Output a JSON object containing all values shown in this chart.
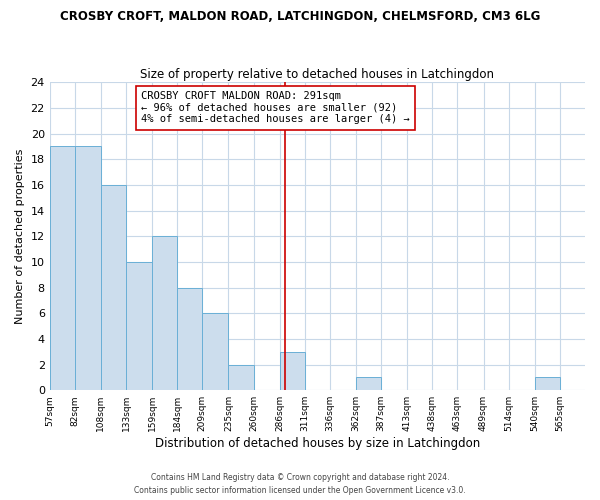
{
  "title_line1": "CROSBY CROFT, MALDON ROAD, LATCHINGDON, CHELMSFORD, CM3 6LG",
  "title_line2": "Size of property relative to detached houses in Latchingdon",
  "xlabel": "Distribution of detached houses by size in Latchingdon",
  "ylabel": "Number of detached properties",
  "bar_edges": [
    57,
    82,
    108,
    133,
    159,
    184,
    209,
    235,
    260,
    286,
    311,
    336,
    362,
    387,
    413,
    438,
    463,
    489,
    514,
    540,
    565,
    590
  ],
  "bar_heights": [
    19,
    19,
    16,
    10,
    12,
    8,
    6,
    2,
    0,
    3,
    0,
    0,
    1,
    0,
    0,
    0,
    0,
    0,
    0,
    1,
    0
  ],
  "bar_color": "#ccdded",
  "bar_edge_color": "#6aafd6",
  "reference_line_x": 291,
  "reference_line_color": "#cc0000",
  "annotation_text_line1": "CROSBY CROFT MALDON ROAD: 291sqm",
  "annotation_text_line2": "← 96% of detached houses are smaller (92)",
  "annotation_text_line3": "4% of semi-detached houses are larger (4) →",
  "ylim": [
    0,
    24
  ],
  "yticks": [
    0,
    2,
    4,
    6,
    8,
    10,
    12,
    14,
    16,
    18,
    20,
    22,
    24
  ],
  "tick_labels": [
    "57sqm",
    "82sqm",
    "108sqm",
    "133sqm",
    "159sqm",
    "184sqm",
    "209sqm",
    "235sqm",
    "260sqm",
    "286sqm",
    "311sqm",
    "336sqm",
    "362sqm",
    "387sqm",
    "413sqm",
    "438sqm",
    "463sqm",
    "489sqm",
    "514sqm",
    "540sqm",
    "565sqm"
  ],
  "tick_positions": [
    57,
    82,
    108,
    133,
    159,
    184,
    209,
    235,
    260,
    286,
    311,
    336,
    362,
    387,
    413,
    438,
    463,
    489,
    514,
    540,
    565
  ],
  "footer_line1": "Contains HM Land Registry data © Crown copyright and database right 2024.",
  "footer_line2": "Contains public sector information licensed under the Open Government Licence v3.0.",
  "bg_color": "#ffffff",
  "plot_bg_color": "#ffffff",
  "grid_color": "#c8d8e8"
}
